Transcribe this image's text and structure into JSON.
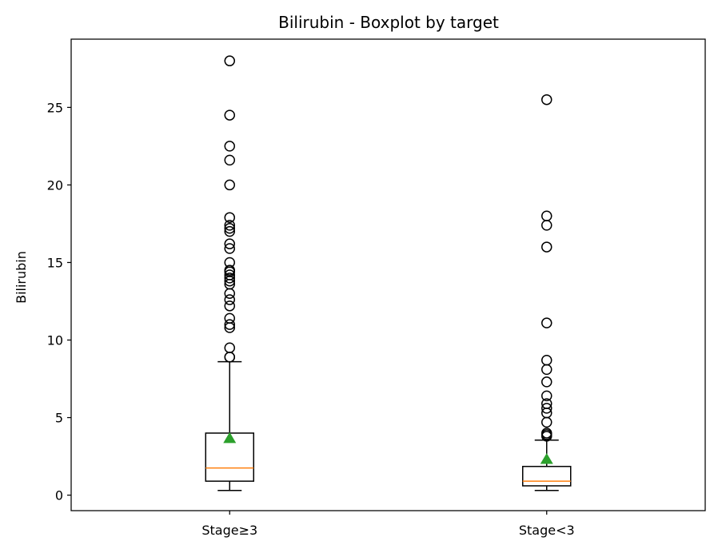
{
  "chart_data": {
    "type": "boxplot",
    "title": "Bilirubin - Boxplot by target",
    "xlabel": "",
    "ylabel": "Bilirubin",
    "ylim": [
      -1.0,
      29.4
    ],
    "yticks": [
      0,
      5,
      10,
      15,
      20,
      25
    ],
    "categories": [
      "Stage≥3",
      "Stage<3"
    ],
    "boxes": [
      {
        "category": "Stage≥3",
        "whisker_low": 0.3,
        "q1": 0.9,
        "median": 1.75,
        "q3": 4.0,
        "whisker_high": 8.6,
        "mean": 3.65,
        "outliers": [
          8.9,
          8.9,
          9.5,
          10.8,
          11.0,
          11.4,
          12.2,
          12.6,
          13.0,
          13.6,
          13.8,
          14.0,
          14.2,
          14.4,
          14.5,
          15.0,
          15.9,
          16.2,
          17.0,
          17.2,
          17.4,
          17.9,
          20.0,
          21.6,
          22.5,
          24.5,
          28.0
        ]
      },
      {
        "category": "Stage<3",
        "whisker_low": 0.3,
        "q1": 0.6,
        "median": 0.9,
        "q3": 1.85,
        "whisker_high": 3.55,
        "mean": 2.3,
        "outliers": [
          3.8,
          3.9,
          4.0,
          4.7,
          5.3,
          5.6,
          5.9,
          6.4,
          7.3,
          8.1,
          8.7,
          11.1,
          16.0,
          17.4,
          18.0,
          25.5
        ]
      }
    ],
    "colors": {
      "box": "#000000",
      "median": "#ff7f0e",
      "mean": "#2ca02c",
      "flier": "#000000"
    },
    "grid": false,
    "legend": "none"
  }
}
